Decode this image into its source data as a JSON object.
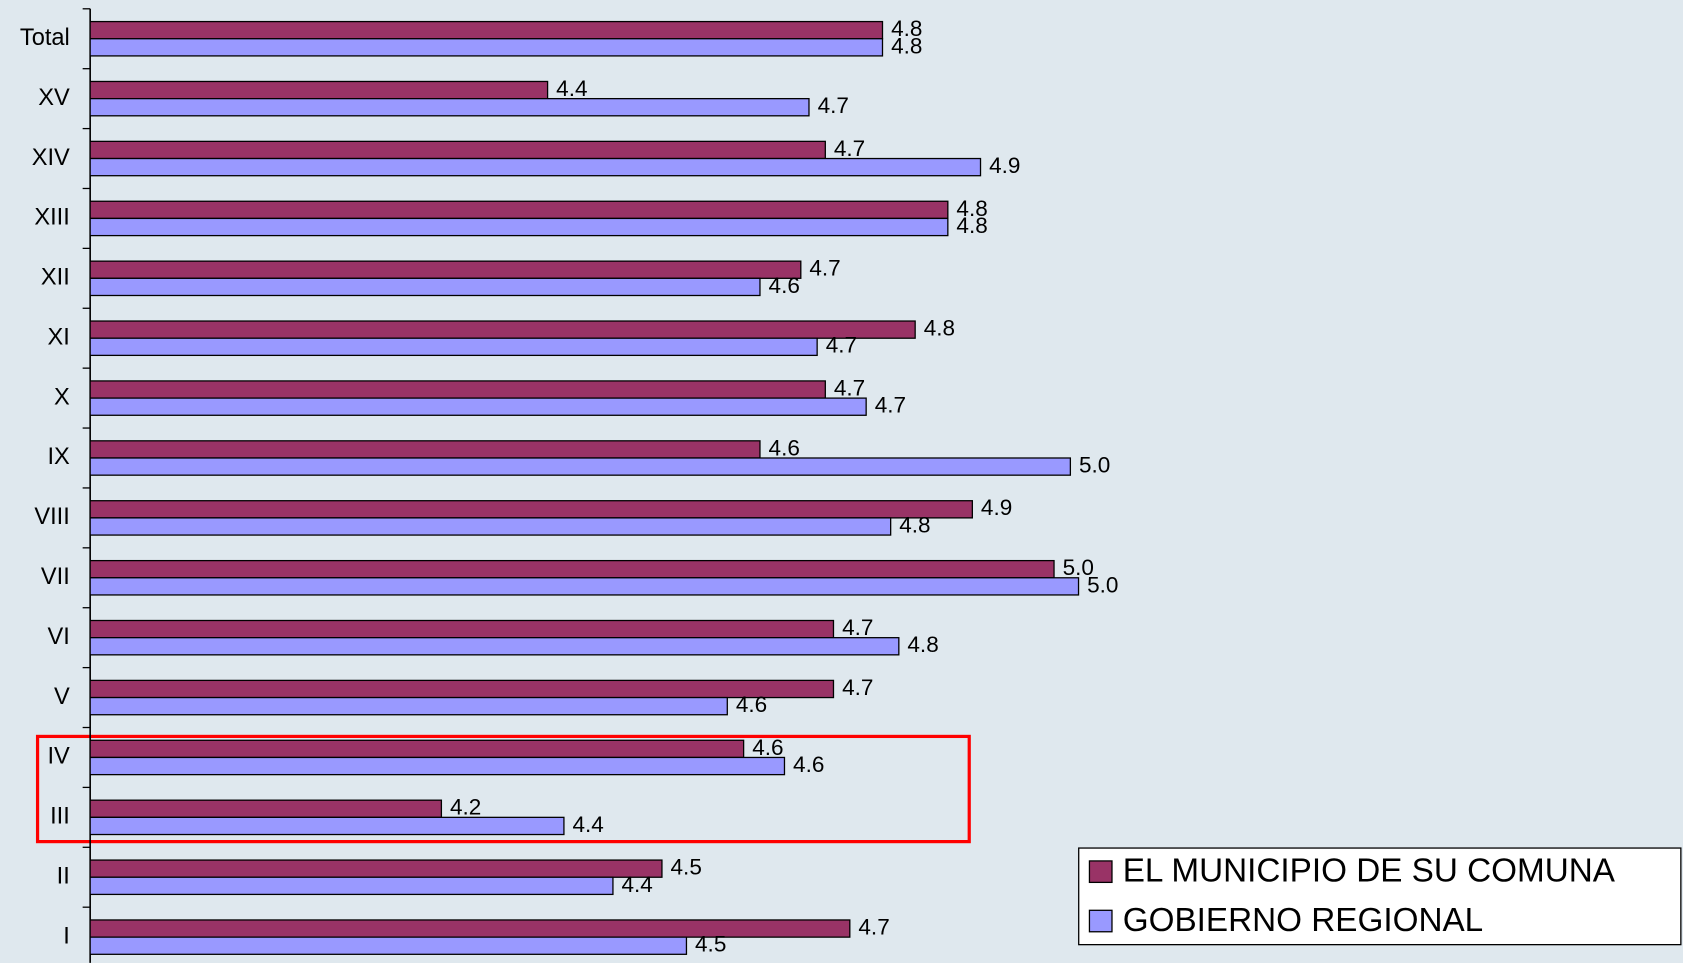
{
  "chart_data": {
    "type": "bar",
    "orientation": "horizontal",
    "categories": [
      "Total",
      "XV",
      "XIV",
      "XIII",
      "XII",
      "XI",
      "X",
      "IX",
      "VIII",
      "VII",
      "VI",
      "V",
      "IV",
      "III",
      "II",
      "I"
    ],
    "series": [
      {
        "name": "EL MUNICIPIO DE SU COMUNA",
        "color": "#993366",
        "values": [
          4.76,
          4.35,
          4.69,
          4.84,
          4.66,
          4.8,
          4.69,
          4.61,
          4.87,
          4.97,
          4.7,
          4.7,
          4.59,
          4.22,
          4.49,
          4.72
        ],
        "value_labels": [
          "4.8",
          "4.4",
          "4.7",
          "4.8",
          "4.7",
          "4.8",
          "4.7",
          "4.6",
          "4.9",
          "5.0",
          "4.7",
          "4.7",
          "4.6",
          "4.2",
          "4.5",
          "4.7"
        ]
      },
      {
        "name": "GOBIERNO REGIONAL",
        "color": "#9999ff",
        "values": [
          4.76,
          4.67,
          4.88,
          4.84,
          4.61,
          4.68,
          4.74,
          4.99,
          4.77,
          5.0,
          4.78,
          4.57,
          4.64,
          4.37,
          4.43,
          4.52
        ],
        "value_labels": [
          "4.8",
          "4.7",
          "4.9",
          "4.8",
          "4.6",
          "4.7",
          "4.7",
          "5.0",
          "4.8",
          "5.0",
          "4.8",
          "4.6",
          "4.6",
          "4.4",
          "4.4",
          "4.5"
        ]
      }
    ],
    "xlim": [
      3.79,
      5.74
    ],
    "legend": "bottom-right"
  }
}
